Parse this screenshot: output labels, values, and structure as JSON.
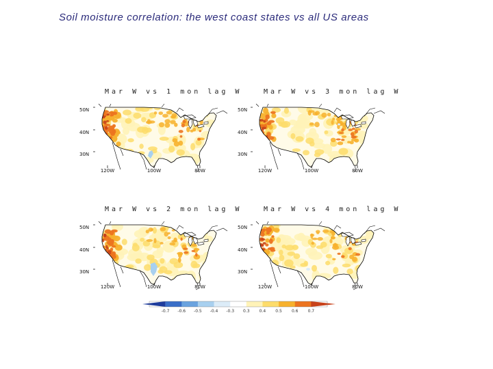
{
  "page": {
    "title": "Soil moisture correlation: the west coast states vs all US areas"
  },
  "panels": [
    {
      "title": "Mar W vs 1 mon lag W",
      "lat_labels": [
        "50N",
        "40N",
        "30N"
      ],
      "lon_labels": [
        "120W",
        "100W",
        "80W"
      ],
      "east_intensity": 0.55,
      "west_intensity": 0.9
    },
    {
      "title": "Mar W vs 3 mon lag W",
      "lat_labels": [
        "50N",
        "40N",
        "30N"
      ],
      "lon_labels": [
        "120W",
        "100W",
        "80W"
      ],
      "east_intensity": 0.85,
      "west_intensity": 0.6
    },
    {
      "title": "Mar W vs 2 mon lag W",
      "lat_labels": [
        "50N",
        "40N",
        "30N"
      ],
      "lon_labels": [
        "120W",
        "100W",
        "80W"
      ],
      "east_intensity": 0.45,
      "west_intensity": 0.85
    },
    {
      "title": "Mar W vs 4 mon lag W",
      "lat_labels": [
        "50N",
        "40N",
        "30N"
      ],
      "lon_labels": [
        "120W",
        "100W",
        "80W"
      ],
      "east_intensity": 0.4,
      "west_intensity": 0.65
    }
  ],
  "colorbar": {
    "levels": [
      "-0.7",
      "-0.6",
      "-0.5",
      "-0.4",
      "-0.3",
      "0.3",
      "0.4",
      "0.5",
      "0.6",
      "0.7"
    ],
    "colors": [
      "#1e3c9c",
      "#3a6fc8",
      "#6aa3df",
      "#a8d0ef",
      "#dcecf8",
      "#ffffff",
      "#fff3b8",
      "#fddc6b",
      "#f7b12e",
      "#ec7420",
      "#c8421a"
    ]
  },
  "colors": {
    "title": "#2a2a7a",
    "land_base": "#fffbe8"
  }
}
